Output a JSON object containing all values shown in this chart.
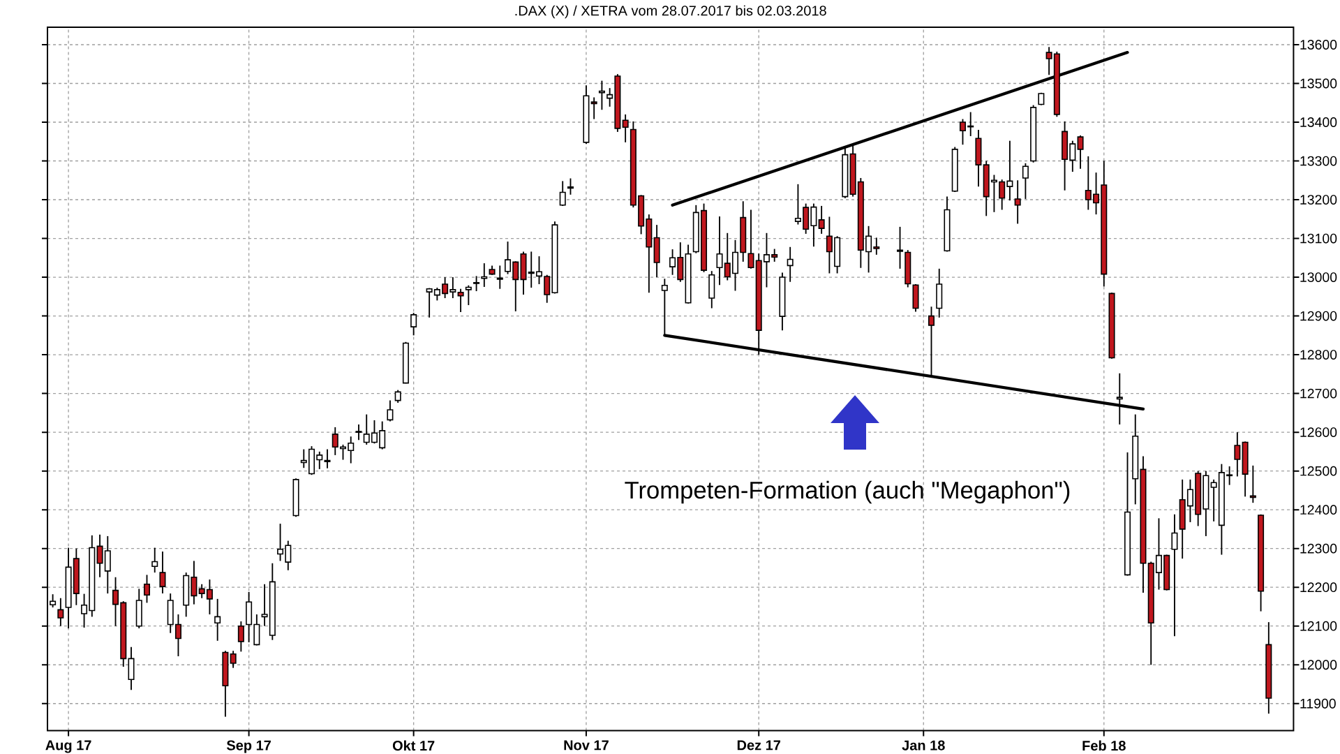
{
  "chart_data": {
    "type": "candlestick",
    "title": ".DAX (X) / XETRA vom 28.07.2017 bis 02.03.2018",
    "categories": [
      null,
      null,
      "Aug 17",
      null,
      null,
      null,
      null,
      null,
      null,
      null,
      null,
      null,
      null,
      null,
      null,
      null,
      null,
      null,
      null,
      null,
      null,
      null,
      null,
      null,
      null,
      "Sep 17",
      null,
      null,
      null,
      null,
      null,
      null,
      null,
      null,
      null,
      null,
      null,
      null,
      null,
      null,
      null,
      null,
      null,
      null,
      null,
      null,
      "Okt 17",
      null,
      null,
      null,
      null,
      null,
      null,
      null,
      null,
      null,
      null,
      null,
      null,
      null,
      null,
      null,
      null,
      null,
      null,
      null,
      null,
      null,
      "Nov 17",
      null,
      null,
      null,
      null,
      null,
      null,
      null,
      null,
      null,
      null,
      null,
      null,
      null,
      null,
      null,
      null,
      null,
      null,
      null,
      null,
      null,
      "Dez 17",
      null,
      null,
      null,
      null,
      null,
      null,
      null,
      null,
      null,
      null,
      null,
      null,
      null,
      null,
      null,
      null,
      null,
      null,
      null,
      null,
      "Jan 18",
      null,
      null,
      null,
      null,
      null,
      null,
      null,
      null,
      null,
      null,
      null,
      null,
      null,
      null,
      null,
      null,
      null,
      null,
      null,
      null,
      null,
      null,
      "Feb 18",
      null,
      null,
      null,
      null,
      null,
      null,
      null,
      null,
      null,
      null,
      null,
      null,
      null,
      null,
      null,
      null,
      null,
      null,
      null,
      null,
      null
    ],
    "ohlc": [
      [
        12155,
        12182,
        12148,
        12164
      ],
      [
        12142,
        12172,
        12100,
        12121
      ],
      [
        12148,
        12302,
        12094,
        12252
      ],
      [
        12274,
        12300,
        12154,
        12184
      ],
      [
        12132,
        12183,
        12096,
        12154
      ],
      [
        12140,
        12334,
        12124,
        12302
      ],
      [
        12306,
        12336,
        12226,
        12262
      ],
      [
        12242,
        12332,
        12184,
        12294
      ],
      [
        12192,
        12226,
        12100,
        12156
      ],
      [
        12160,
        12164,
        11995,
        12016
      ],
      [
        11962,
        12046,
        11935,
        12016
      ],
      [
        12100,
        12196,
        12094,
        12166
      ],
      [
        12208,
        12232,
        12160,
        12180
      ],
      [
        12254,
        12302,
        12238,
        12266
      ],
      [
        12238,
        12292,
        12184,
        12202
      ],
      [
        12104,
        12184,
        12082,
        12166
      ],
      [
        12104,
        12130,
        12022,
        12068
      ],
      [
        12154,
        12238,
        12124,
        12230
      ],
      [
        12226,
        12268,
        12156,
        12178
      ],
      [
        12196,
        12208,
        12172,
        12184
      ],
      [
        12194,
        12220,
        12130,
        12170
      ],
      [
        12108,
        12170,
        12062,
        12124
      ],
      [
        12032,
        12036,
        11866,
        11946
      ],
      [
        12028,
        12036,
        11992,
        12004
      ],
      [
        12100,
        12112,
        12034,
        12060
      ],
      [
        12104,
        12188,
        12058,
        12162
      ],
      [
        12052,
        12130,
        12050,
        12104
      ],
      [
        12124,
        12208,
        12100,
        12130
      ],
      [
        12076,
        12262,
        12064,
        12214
      ],
      [
        12286,
        12364,
        12268,
        12298
      ],
      [
        12265,
        12320,
        12244,
        12308
      ],
      [
        12385,
        12481,
        12382,
        12478
      ],
      [
        12522,
        12556,
        12508,
        12527
      ],
      [
        12493,
        12564,
        12490,
        12556
      ],
      [
        12529,
        12550,
        12505,
        12541
      ],
      [
        12527,
        12556,
        12507,
        12524
      ],
      [
        12595,
        12613,
        12541,
        12562
      ],
      [
        12558,
        12568,
        12529,
        12562
      ],
      [
        12553,
        12589,
        12520,
        12572
      ],
      [
        12600,
        12620,
        12580,
        12602
      ],
      [
        12574,
        12646,
        12568,
        12595
      ],
      [
        12574,
        12631,
        12571,
        12598
      ],
      [
        12560,
        12628,
        12556,
        12604
      ],
      [
        12632,
        12682,
        12628,
        12658
      ],
      [
        12682,
        12709,
        12676,
        12704
      ],
      [
        12727,
        12833,
        12726,
        12830
      ],
      [
        12872,
        12908,
        12850,
        12903
      ],
      null,
      [
        12962,
        12972,
        12896,
        12970
      ],
      [
        12954,
        12973,
        12940,
        12968
      ],
      [
        12982,
        13000,
        12946,
        12958
      ],
      [
        12962,
        13000,
        12946,
        12968
      ],
      [
        12961,
        12970,
        12910,
        12952
      ],
      [
        12968,
        12979,
        12928,
        12974
      ],
      [
        12984,
        13003,
        12964,
        12986
      ],
      [
        12997,
        13036,
        12975,
        13001
      ],
      [
        13020,
        13030,
        13006,
        13008
      ],
      [
        12998,
        13030,
        12970,
        12995
      ],
      [
        13015,
        13092,
        13008,
        13045
      ],
      [
        13039,
        13041,
        12912,
        12994
      ],
      [
        13060,
        13066,
        12955,
        12994
      ],
      [
        13013,
        13066,
        12973,
        13010
      ],
      [
        13003,
        13054,
        12982,
        13014
      ],
      [
        13002,
        13006,
        12934,
        12955
      ],
      [
        12960,
        13144,
        12958,
        13135
      ],
      [
        13186,
        13248,
        13184,
        13219
      ],
      [
        13230,
        13255,
        13213,
        13233
      ],
      null,
      [
        13348,
        13495,
        13344,
        13468
      ],
      [
        13452,
        13464,
        13408,
        13448
      ],
      [
        13476,
        13507,
        13432,
        13480
      ],
      [
        13462,
        13488,
        13440,
        13471
      ],
      [
        13519,
        13524,
        13375,
        13384
      ],
      [
        13405,
        13420,
        13348,
        13387
      ],
      [
        13381,
        13402,
        13180,
        13186
      ],
      [
        13210,
        13212,
        13111,
        13132
      ],
      [
        13150,
        13162,
        12960,
        13078
      ],
      [
        13102,
        13135,
        13000,
        13038
      ],
      [
        12966,
        12996,
        12850,
        12979
      ],
      [
        13027,
        13072,
        13006,
        13050
      ],
      [
        13051,
        13090,
        12988,
        12994
      ],
      [
        12934,
        13084,
        12932,
        13060
      ],
      [
        13066,
        13186,
        13062,
        13167
      ],
      [
        13172,
        13190,
        13013,
        13018
      ],
      [
        12946,
        13016,
        12920,
        13006
      ],
      [
        13025,
        13157,
        12980,
        13060
      ],
      [
        13036,
        13114,
        12992,
        13001
      ],
      [
        13010,
        13096,
        12965,
        13064
      ],
      [
        13154,
        13196,
        13040,
        13064
      ],
      [
        13061,
        13174,
        13022,
        13025
      ],
      [
        13043,
        13061,
        12800,
        12863
      ],
      [
        13040,
        13114,
        12974,
        13058
      ],
      [
        13058,
        13073,
        13040,
        13052
      ],
      [
        12899,
        13012,
        12863,
        13000
      ],
      [
        13030,
        13078,
        12988,
        13046
      ],
      [
        13144,
        13240,
        13136,
        13152
      ],
      [
        13180,
        13190,
        13112,
        13124
      ],
      [
        13133,
        13190,
        13079,
        13181
      ],
      [
        13148,
        13184,
        13112,
        13126
      ],
      [
        13106,
        13156,
        13010,
        13066
      ],
      [
        13028,
        13106,
        13010,
        13102
      ],
      [
        13208,
        13334,
        13204,
        13316
      ],
      [
        13318,
        13340,
        13208,
        13214
      ],
      [
        13246,
        13256,
        13024,
        13070
      ],
      [
        13066,
        13132,
        13012,
        13106
      ],
      [
        13078,
        13102,
        13058,
        13074
      ],
      null,
      null,
      [
        13070,
        13130,
        13022,
        13067
      ],
      [
        13064,
        13070,
        12974,
        12983
      ],
      [
        12980,
        12982,
        12911,
        12920
      ],
      null,
      [
        12900,
        12924,
        12744,
        12876
      ],
      [
        12920,
        13022,
        12896,
        12982
      ],
      [
        13068,
        13208,
        13066,
        13174
      ],
      [
        13222,
        13336,
        13220,
        13330
      ],
      [
        13400,
        13408,
        13342,
        13378
      ],
      [
        13388,
        13426,
        13364,
        13390
      ],
      [
        13358,
        13380,
        13234,
        13290
      ],
      [
        13290,
        13300,
        13158,
        13208
      ],
      [
        13246,
        13264,
        13168,
        13250
      ],
      [
        13246,
        13252,
        13174,
        13204
      ],
      [
        13234,
        13352,
        13198,
        13248
      ],
      [
        13202,
        13250,
        13138,
        13186
      ],
      [
        13256,
        13294,
        13202,
        13286
      ],
      [
        13300,
        13444,
        13296,
        13438
      ],
      [
        13446,
        13476,
        13444,
        13474
      ],
      [
        13580,
        13594,
        13522,
        13564
      ],
      [
        13576,
        13582,
        13414,
        13420
      ],
      [
        13376,
        13402,
        13224,
        13304
      ],
      [
        13302,
        13352,
        13272,
        13344
      ],
      [
        13362,
        13366,
        13280,
        13330
      ],
      [
        13224,
        13312,
        13174,
        13200
      ],
      [
        13214,
        13270,
        13162,
        13192
      ],
      [
        13238,
        13300,
        12976,
        13008
      ],
      [
        12958,
        12960,
        12790,
        12792
      ],
      [
        12686,
        12752,
        12620,
        12690
      ],
      [
        12232,
        12548,
        12230,
        12394
      ],
      [
        12480,
        12646,
        12414,
        12590
      ],
      [
        12504,
        12538,
        12186,
        12262
      ],
      [
        12262,
        12266,
        12000,
        12108
      ],
      [
        12238,
        12378,
        12194,
        12282
      ],
      [
        12282,
        12284,
        12192,
        12194
      ],
      [
        12298,
        12388,
        12074,
        12340
      ],
      [
        12426,
        12478,
        12274,
        12350
      ],
      [
        12410,
        12478,
        12368,
        12452
      ],
      [
        12494,
        12500,
        12358,
        12388
      ],
      [
        12402,
        12500,
        12332,
        12488
      ],
      [
        12458,
        12478,
        12370,
        12470
      ],
      [
        12360,
        12518,
        12284,
        12496
      ],
      [
        12488,
        12512,
        12464,
        12490
      ],
      [
        12566,
        12600,
        12486,
        12530
      ],
      [
        12574,
        12576,
        12434,
        12492
      ],
      [
        12436,
        12514,
        12418,
        12432
      ],
      [
        12386,
        12388,
        12138,
        12190
      ],
      [
        12052,
        12110,
        11874,
        11914
      ]
    ],
    "colors": [
      "#ffffff",
      "#c0171e",
      "#ffffff",
      "#c0171e",
      "#ffffff",
      "#ffffff",
      "#c0171e",
      "#ffffff",
      "#c0171e",
      "#c0171e",
      "#ffffff",
      "#ffffff",
      "#c0171e",
      "#ffffff",
      "#c0171e",
      "#ffffff",
      "#c0171e",
      "#ffffff",
      "#c0171e",
      "#c0171e",
      "#c0171e",
      "#ffffff",
      "#c0171e",
      "#c0171e",
      "#c0171e",
      "#ffffff",
      "#ffffff",
      "#ffffff",
      "#ffffff",
      "#ffffff",
      "#ffffff",
      "#ffffff",
      "#ffffff",
      "#ffffff",
      "#ffffff",
      "#c0171e",
      "#c0171e",
      "#ffffff",
      "#ffffff",
      "#ffffff",
      "#ffffff",
      "#ffffff",
      "#ffffff",
      "#ffffff",
      "#ffffff",
      "#ffffff",
      "#ffffff",
      null,
      "#ffffff",
      "#ffffff",
      "#c0171e",
      "#ffffff",
      "#c0171e",
      "#ffffff",
      "#ffffff",
      "#ffffff",
      "#c0171e",
      "#c0171e",
      "#ffffff",
      "#c0171e",
      "#c0171e",
      "#c0171e",
      "#ffffff",
      "#c0171e",
      "#ffffff",
      "#ffffff",
      "#ffffff",
      null,
      "#ffffff",
      "#c0171e",
      "#ffffff",
      "#ffffff",
      "#c0171e",
      "#c0171e",
      "#c0171e",
      "#c0171e",
      "#c0171e",
      "#c0171e",
      "#ffffff",
      "#ffffff",
      "#c0171e",
      "#ffffff",
      "#ffffff",
      "#c0171e",
      "#ffffff",
      "#ffffff",
      "#c0171e",
      "#ffffff",
      "#c0171e",
      "#c0171e",
      "#c0171e",
      "#ffffff",
      "#c0171e",
      "#ffffff",
      "#ffffff",
      "#ffffff",
      "#c0171e",
      "#ffffff",
      "#c0171e",
      "#c0171e",
      "#ffffff",
      "#ffffff",
      "#c0171e",
      "#c0171e",
      "#ffffff",
      "#c0171e",
      null,
      null,
      "#c0171e",
      "#c0171e",
      "#c0171e",
      null,
      "#c0171e",
      "#ffffff",
      "#ffffff",
      "#ffffff",
      "#c0171e",
      "#ffffff",
      "#c0171e",
      "#c0171e",
      "#ffffff",
      "#c0171e",
      "#ffffff",
      "#c0171e",
      "#ffffff",
      "#ffffff",
      "#ffffff",
      "#c0171e",
      "#c0171e",
      "#c0171e",
      "#ffffff",
      "#c0171e",
      "#c0171e",
      "#c0171e",
      "#c0171e",
      "#c0171e",
      "#ffffff",
      "#ffffff",
      "#ffffff",
      "#c0171e",
      "#c0171e",
      "#ffffff",
      "#c0171e",
      "#ffffff",
      "#c0171e",
      "#ffffff",
      "#c0171e",
      "#ffffff",
      "#ffffff",
      "#ffffff",
      "#ffffff",
      "#c0171e",
      "#c0171e",
      "#c0171e",
      "#c0171e",
      "#c0171e"
    ],
    "series": [
      {
        "type": "line",
        "color": "#000000",
        "values": [
          null,
          null,
          null,
          null,
          null,
          null,
          null,
          null,
          null,
          null,
          null,
          null,
          null,
          null,
          null,
          null,
          null,
          null,
          null,
          null,
          null,
          null,
          null,
          null,
          null,
          null,
          null,
          null,
          null,
          null,
          null,
          null,
          null,
          null,
          null,
          null,
          null,
          null,
          null,
          null,
          null,
          null,
          null,
          null,
          null,
          null,
          null,
          null,
          null,
          null,
          null,
          null,
          null,
          null,
          null,
          null,
          null,
          null,
          null,
          null,
          null,
          null,
          null,
          null,
          null,
          null,
          null,
          null,
          null,
          null,
          null,
          null,
          null,
          null,
          null,
          null,
          null,
          null,
          null,
          13186,
          null,
          null,
          null,
          null,
          null,
          null,
          null,
          null,
          null,
          null,
          null,
          null,
          null,
          null,
          null,
          null,
          null,
          null,
          null,
          null,
          null,
          null,
          null,
          null,
          null,
          null,
          null,
          null,
          null,
          null,
          null,
          null,
          null,
          null,
          null,
          null,
          null,
          null,
          null,
          null,
          null,
          null,
          null,
          null,
          null,
          null,
          null,
          null,
          null,
          null,
          null,
          null,
          null,
          null,
          null,
          null,
          null,
          13580,
          null,
          null,
          null,
          null,
          null,
          null,
          null,
          null,
          null,
          null,
          null,
          null,
          null,
          null,
          null,
          null,
          null,
          null
        ]
      },
      {
        "type": "line",
        "color": "#000000",
        "values": [
          null,
          null,
          null,
          null,
          null,
          null,
          null,
          null,
          null,
          null,
          null,
          null,
          null,
          null,
          null,
          null,
          null,
          null,
          null,
          null,
          null,
          null,
          null,
          null,
          null,
          null,
          null,
          null,
          null,
          null,
          null,
          null,
          null,
          null,
          null,
          null,
          null,
          null,
          null,
          null,
          null,
          null,
          null,
          null,
          null,
          null,
          null,
          null,
          null,
          null,
          null,
          null,
          null,
          null,
          null,
          null,
          null,
          null,
          null,
          null,
          null,
          null,
          null,
          null,
          null,
          null,
          null,
          null,
          null,
          null,
          null,
          null,
          null,
          null,
          null,
          null,
          null,
          null,
          12850,
          null,
          null,
          null,
          null,
          null,
          null,
          null,
          null,
          null,
          null,
          null,
          null,
          null,
          null,
          null,
          null,
          null,
          null,
          null,
          null,
          null,
          null,
          null,
          null,
          null,
          null,
          null,
          null,
          null,
          null,
          null,
          null,
          null,
          null,
          null,
          null,
          null,
          null,
          null,
          null,
          null,
          null,
          null,
          null,
          null,
          null,
          null,
          null,
          null,
          null,
          null,
          null,
          null,
          null,
          null,
          null,
          null,
          null,
          null,
          null,
          12660,
          null,
          null,
          null,
          null,
          null,
          null,
          null,
          null,
          null,
          null,
          null,
          null,
          null,
          null,
          null,
          null
        ]
      }
    ],
    "ylim": [
      11830,
      13645
    ],
    "yticks": [
      11900,
      12000,
      12100,
      12200,
      12300,
      12400,
      12500,
      12600,
      12700,
      12800,
      12900,
      13000,
      13100,
      13200,
      13300,
      13400,
      13500,
      13600
    ],
    "grid": true,
    "annotations": [
      "Trompeten-Formation (auch \"Megaphon\")"
    ]
  }
}
